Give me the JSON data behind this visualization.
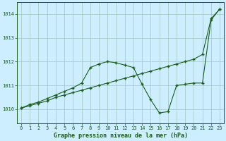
{
  "title": "Graphe pression niveau de la mer (hPa)",
  "background_color": "#cceeff",
  "grid_color": "#aacccc",
  "line_color": "#1a5c1a",
  "xlim": [
    -0.5,
    23.5
  ],
  "ylim": [
    1009.4,
    1014.5
  ],
  "yticks": [
    1010,
    1011,
    1012,
    1013,
    1014
  ],
  "xticks": [
    0,
    1,
    2,
    3,
    4,
    5,
    6,
    7,
    8,
    9,
    10,
    11,
    12,
    13,
    14,
    15,
    16,
    17,
    18,
    19,
    20,
    21,
    22,
    23
  ],
  "line1_x": [
    0,
    1,
    2,
    3,
    4,
    5,
    6,
    7,
    8,
    9,
    10,
    11,
    12,
    13,
    14,
    15,
    16,
    17,
    18,
    19,
    20,
    21,
    22,
    23
  ],
  "line1_y": [
    1010.05,
    1010.15,
    1010.25,
    1010.35,
    1010.5,
    1010.6,
    1010.7,
    1010.8,
    1010.9,
    1011.0,
    1011.1,
    1011.2,
    1011.3,
    1011.4,
    1011.5,
    1011.6,
    1011.7,
    1011.8,
    1011.9,
    1012.0,
    1012.1,
    1012.3,
    1013.8,
    1014.2
  ],
  "line2_x": [
    0,
    1,
    2,
    3,
    4,
    5,
    6,
    7,
    8,
    9,
    10,
    11,
    12,
    13,
    14,
    15,
    16,
    17,
    18,
    19,
    20,
    21,
    22,
    23
  ],
  "line2_y": [
    1010.05,
    1010.2,
    1010.3,
    1010.45,
    1010.6,
    1010.75,
    1010.9,
    1011.1,
    1011.75,
    1011.9,
    1012.0,
    1011.95,
    1011.85,
    1011.75,
    1011.05,
    1010.4,
    1009.85,
    1009.9,
    1011.0,
    1011.05,
    1011.1,
    1011.1,
    1013.75,
    1014.2
  ]
}
